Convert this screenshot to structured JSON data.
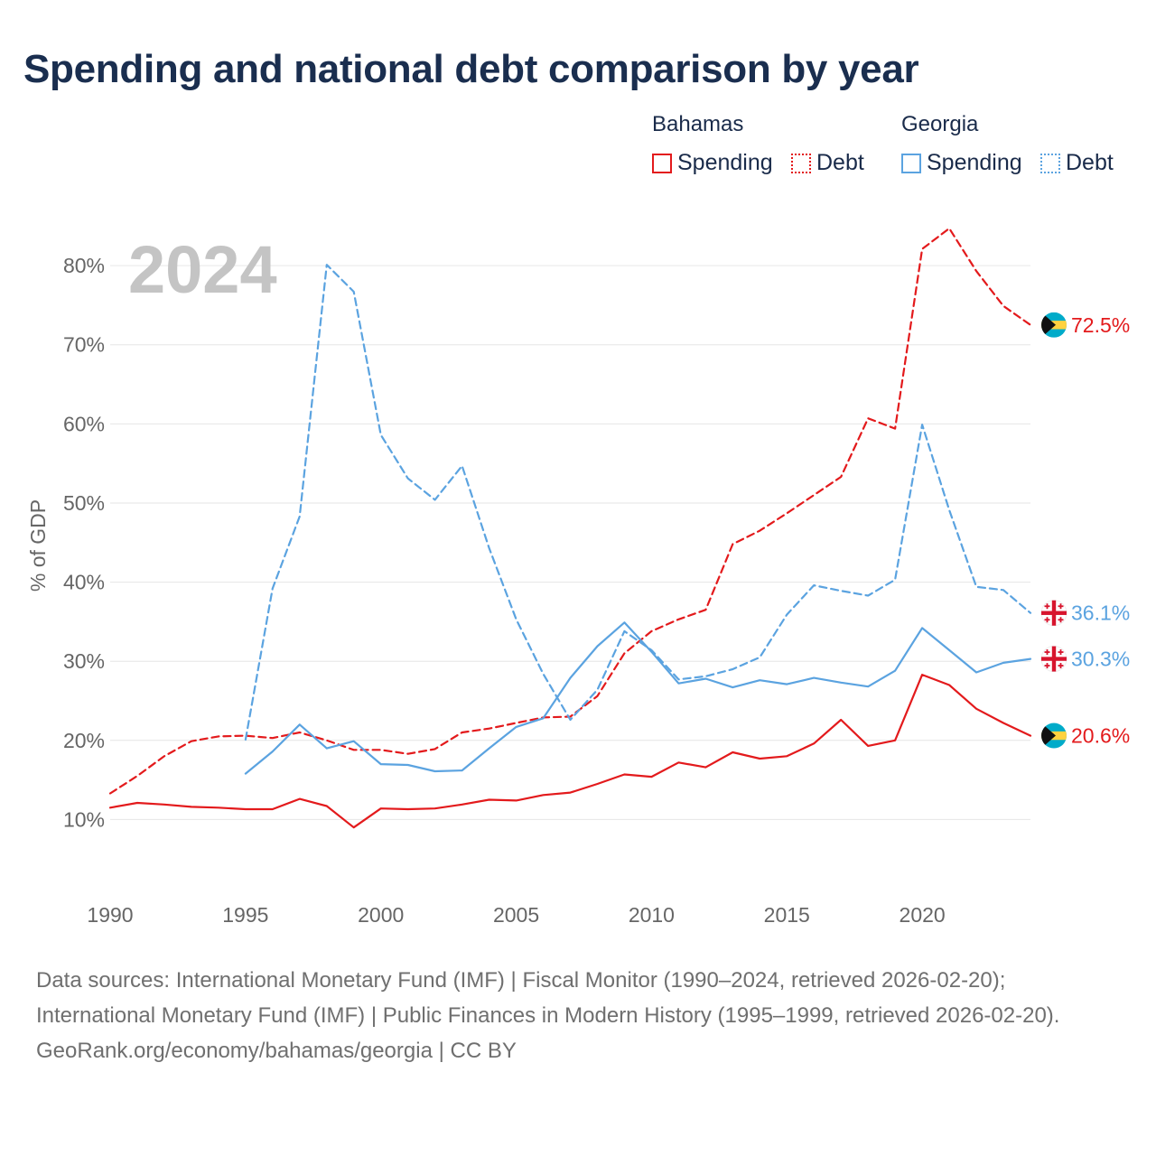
{
  "title": "Spending and national debt comparison by year",
  "legend": {
    "groups": [
      {
        "country": "Bahamas",
        "spending_label": "Spending",
        "debt_label": "Debt"
      },
      {
        "country": "Georgia",
        "spending_label": "Spending",
        "debt_label": "Debt"
      }
    ]
  },
  "colors": {
    "bahamas": "#e31a1c",
    "georgia": "#5ba3e0"
  },
  "chart_data": {
    "type": "line",
    "title": "Spending and national debt comparison by year",
    "xlabel": "",
    "ylabel": "% of GDP",
    "year_label": "2024",
    "xlim": [
      1990,
      2024
    ],
    "ylim": [
      4,
      88
    ],
    "x_ticks": [
      1990,
      1995,
      2000,
      2005,
      2010,
      2015,
      2020
    ],
    "y_ticks": [
      10,
      20,
      30,
      40,
      50,
      60,
      70,
      80
    ],
    "y_tick_suffix": "%",
    "grid": true,
    "series": [
      {
        "name": "Bahamas Spending",
        "country": "Bahamas",
        "metric": "Spending",
        "style": "solid",
        "color": "#e31a1c",
        "x": [
          1990,
          1991,
          1992,
          1993,
          1994,
          1995,
          1996,
          1997,
          1998,
          1999,
          2000,
          2001,
          2002,
          2003,
          2004,
          2005,
          2006,
          2007,
          2008,
          2009,
          2010,
          2011,
          2012,
          2013,
          2014,
          2015,
          2016,
          2017,
          2018,
          2019,
          2020,
          2021,
          2022,
          2023,
          2024
        ],
        "values": [
          11.5,
          12.1,
          11.9,
          11.6,
          11.5,
          11.3,
          11.3,
          12.6,
          11.7,
          9.0,
          11.4,
          11.3,
          11.4,
          11.9,
          12.5,
          12.4,
          13.1,
          13.4,
          14.5,
          15.7,
          15.4,
          17.2,
          16.6,
          18.5,
          17.7,
          18.0,
          19.6,
          22.6,
          19.3,
          20.0,
          28.3,
          27.0,
          24.0,
          22.2,
          20.6
        ],
        "end_label": "20.6%"
      },
      {
        "name": "Bahamas Debt",
        "country": "Bahamas",
        "metric": "Debt",
        "style": "dashed",
        "color": "#e31a1c",
        "x": [
          1990,
          1991,
          1992,
          1993,
          1994,
          1995,
          1996,
          1997,
          1998,
          1999,
          2000,
          2001,
          2002,
          2003,
          2004,
          2005,
          2006,
          2007,
          2008,
          2009,
          2010,
          2011,
          2012,
          2013,
          2014,
          2015,
          2016,
          2017,
          2018,
          2019,
          2020,
          2021,
          2022,
          2023,
          2024
        ],
        "values": [
          13.3,
          15.5,
          18.0,
          19.9,
          20.5,
          20.6,
          20.3,
          21.0,
          20.0,
          18.8,
          18.8,
          18.3,
          18.9,
          21.0,
          21.5,
          22.2,
          22.9,
          23.0,
          25.6,
          31.0,
          33.8,
          35.3,
          36.5,
          44.8,
          46.5,
          48.7,
          51.0,
          53.3,
          60.7,
          59.4,
          82.1,
          84.7,
          79.3,
          74.9,
          72.5
        ],
        "end_label": "72.5%"
      },
      {
        "name": "Georgia Spending",
        "country": "Georgia",
        "metric": "Spending",
        "style": "solid",
        "color": "#5ba3e0",
        "x": [
          1995,
          1996,
          1997,
          1998,
          1999,
          2000,
          2001,
          2002,
          2003,
          2004,
          2005,
          2006,
          2007,
          2008,
          2009,
          2010,
          2011,
          2012,
          2013,
          2014,
          2015,
          2016,
          2017,
          2018,
          2019,
          2020,
          2021,
          2022,
          2023,
          2024
        ],
        "values": [
          15.8,
          18.6,
          22.0,
          19.0,
          19.9,
          17.0,
          16.9,
          16.1,
          16.2,
          19.0,
          21.7,
          22.8,
          27.9,
          31.9,
          34.9,
          31.2,
          27.2,
          27.8,
          26.7,
          27.6,
          27.1,
          27.9,
          27.3,
          26.8,
          28.8,
          34.2,
          31.4,
          28.6,
          29.8,
          30.3
        ],
        "end_label": "30.3%"
      },
      {
        "name": "Georgia Debt",
        "country": "Georgia",
        "metric": "Debt",
        "style": "dashed",
        "color": "#5ba3e0",
        "x": [
          1995,
          1996,
          1997,
          1998,
          1999,
          2000,
          2001,
          2002,
          2003,
          2004,
          2005,
          2006,
          2007,
          2008,
          2009,
          2010,
          2011,
          2012,
          2013,
          2014,
          2015,
          2016,
          2017,
          2018,
          2019,
          2020,
          2021,
          2022,
          2023,
          2024
        ],
        "values": [
          20.1,
          39.2,
          48.3,
          80.1,
          76.7,
          58.6,
          53.1,
          50.4,
          54.7,
          44.3,
          35.3,
          28.4,
          22.6,
          26.4,
          33.8,
          31.4,
          27.7,
          28.1,
          29.0,
          30.5,
          35.9,
          39.6,
          38.9,
          38.3,
          40.3,
          59.9,
          49.1,
          39.4,
          39.0,
          36.1
        ],
        "end_label": "36.1%"
      }
    ]
  },
  "sources": {
    "line1": "Data sources: International Monetary Fund (IMF) | Fiscal Monitor (1990–2024, retrieved 2026-02-20); International Monetary Fund (IMF) | Public Finances in Modern History (1995–1999, retrieved 2026-02-20).",
    "line2": "GeoRank.org/economy/bahamas/georgia | CC BY"
  }
}
